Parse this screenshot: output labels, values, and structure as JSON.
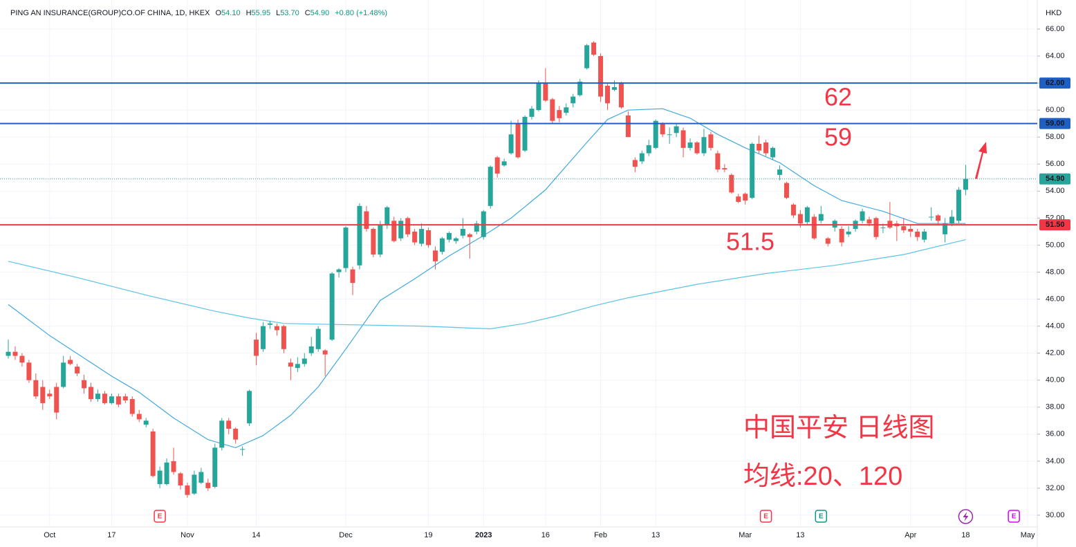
{
  "chart_data": {
    "type": "candlestick",
    "header": {
      "symbol": "PING AN INSURANCE(GROUP)CO.OF CHINA, 1D, HKEX",
      "fields": [
        {
          "key": "O",
          "value": "54.10"
        },
        {
          "key": "H",
          "value": "55.95"
        },
        {
          "key": "L",
          "value": "53.70"
        },
        {
          "key": "C",
          "value": "54.90"
        }
      ],
      "change": "+0.80 (+1.48%)"
    },
    "axis_unit": "HKD",
    "categories": [
      null,
      null,
      null,
      null,
      null,
      null,
      "Oct",
      null,
      null,
      null,
      null,
      null,
      null,
      null,
      null,
      "17",
      null,
      null,
      null,
      null,
      null,
      null,
      null,
      null,
      null,
      null,
      "Nov",
      null,
      null,
      null,
      null,
      null,
      null,
      null,
      null,
      null,
      "14",
      null,
      null,
      null,
      null,
      null,
      null,
      null,
      null,
      null,
      null,
      null,
      null,
      "Dec",
      null,
      null,
      null,
      null,
      null,
      null,
      null,
      null,
      null,
      null,
      null,
      "19",
      null,
      null,
      null,
      null,
      null,
      null,
      null,
      "2023",
      null,
      null,
      null,
      null,
      null,
      null,
      null,
      null,
      "16",
      null,
      null,
      null,
      null,
      null,
      null,
      null,
      "Feb",
      null,
      null,
      null,
      null,
      null,
      null,
      null,
      "13",
      null,
      null,
      null,
      null,
      null,
      null,
      null,
      null,
      null,
      null,
      null,
      null,
      "Mar",
      null,
      null,
      null,
      null,
      null,
      null,
      null,
      "13",
      null,
      null,
      null,
      null,
      null,
      null,
      null,
      null,
      null,
      null,
      null,
      null,
      null,
      null,
      null,
      "Apr",
      null,
      null,
      null,
      null,
      null,
      null,
      null,
      "18",
      null,
      null,
      null,
      null,
      null,
      null,
      null,
      null,
      "May"
    ],
    "open": [
      41.8,
      42.1,
      41.8,
      41.3,
      40.0,
      39.5,
      39.0,
      39.5,
      39.5,
      41.5,
      41.0,
      40.0,
      39.5,
      38.6,
      39.0,
      38.3,
      38.8,
      38.8,
      38.6,
      37.5,
      36.7,
      36.2,
      32.3,
      32.3,
      34.0,
      33.1,
      32.2,
      31.6,
      32.4,
      32.4,
      32.1,
      35.0,
      37.0,
      36.4,
      34.9,
      36.8,
      43.0,
      42.3,
      44.1,
      44.0,
      44.0,
      41.3,
      40.9,
      41.2,
      42.0,
      42.3,
      42.2,
      43.0,
      48.0,
      48.3,
      48.2,
      48.5,
      52.5,
      51.2,
      49.3,
      51.5,
      51.8,
      50.5,
      52.0,
      51.0,
      50.1,
      51.1,
      49.6,
      49.5,
      50.4,
      50.3,
      50.7,
      50.8,
      51.0,
      50.6,
      52.9,
      56.5,
      55.9,
      56.8,
      59.0,
      57.0,
      59.5,
      60.0,
      62.0,
      60.8,
      60.0,
      59.8,
      60.5,
      61.1,
      63.1,
      65.0,
      64.0,
      61.8,
      61.5,
      62.0,
      59.6,
      56.3,
      56.2,
      56.8,
      57.2,
      59.0,
      58.2,
      58.3,
      58.5,
      57.2,
      57.6,
      56.8,
      58.2,
      56.8,
      55.7,
      55.2,
      53.6,
      53.8,
      53.5,
      57.5,
      57.6,
      56.5,
      55.2,
      54.6,
      53.0,
      52.3,
      51.7,
      52.1,
      51.8,
      50.5,
      51.3,
      51.2,
      50.8,
      51.2,
      51.8,
      51.9,
      52.0,
      51.3,
      51.8,
      51.6,
      51.4,
      51.2,
      51.0,
      50.4,
      52.1,
      52.2,
      50.8,
      51.6,
      51.8,
      54.1,
      null,
      null,
      null,
      null,
      null,
      null,
      null,
      null,
      null
    ],
    "high": [
      43.0,
      42.5,
      42.0,
      41.5,
      40.5,
      40.0,
      39.3,
      39.8,
      41.8,
      41.8,
      41.2,
      40.4,
      39.8,
      39.3,
      39.2,
      39.0,
      39.0,
      39.0,
      38.8,
      37.8,
      37.2,
      36.4,
      33.6,
      34.2,
      35.0,
      33.2,
      32.4,
      33.3,
      33.5,
      32.7,
      35.3,
      37.2,
      37.2,
      36.5,
      35.1,
      39.3,
      43.5,
      44.3,
      44.4,
      44.2,
      44.1,
      41.6,
      41.7,
      42.0,
      43.2,
      44.0,
      42.3,
      48.0,
      48.3,
      51.4,
      48.4,
      53.1,
      52.9,
      51.3,
      51.8,
      52.9,
      52.1,
      52.0,
      52.1,
      51.2,
      51.6,
      51.3,
      49.9,
      50.6,
      51.0,
      50.6,
      52.0,
      50.9,
      51.8,
      52.6,
      55.9,
      56.6,
      56.4,
      59.2,
      59.3,
      59.6,
      60.3,
      62.2,
      63.1,
      60.9,
      60.3,
      60.5,
      61.2,
      62.3,
      64.9,
      65.1,
      64.2,
      62.0,
      62.2,
      62.1,
      59.9,
      56.5,
      57.0,
      57.8,
      59.3,
      59.1,
      58.7,
      59.0,
      58.7,
      57.9,
      57.7,
      58.6,
      58.4,
      57.0,
      56.0,
      55.3,
      53.8,
      53.9,
      57.6,
      58.1,
      57.8,
      57.3,
      55.9,
      54.7,
      53.1,
      52.6,
      52.9,
      52.3,
      52.9,
      50.6,
      51.9,
      51.4,
      51.4,
      51.9,
      52.7,
      52.1,
      52.1,
      51.6,
      53.2,
      51.8,
      52.0,
      51.5,
      51.2,
      51.2,
      52.8,
      52.3,
      52.0,
      52.6,
      54.3,
      55.95,
      null,
      null,
      null,
      null,
      null,
      null,
      null,
      null,
      null
    ],
    "low": [
      41.6,
      41.5,
      41.0,
      39.8,
      38.6,
      37.8,
      38.6,
      37.1,
      39.4,
      41.1,
      40.3,
      39.0,
      38.4,
      38.4,
      38.2,
      38.2,
      38.0,
      38.3,
      37.3,
      36.9,
      36.5,
      32.8,
      32.0,
      32.2,
      33.0,
      31.9,
      31.3,
      31.5,
      32.3,
      31.8,
      32.0,
      34.8,
      36.0,
      35.3,
      34.4,
      36.6,
      41.1,
      42.1,
      43.8,
      43.3,
      42.0,
      40.0,
      40.6,
      41.0,
      41.8,
      42.1,
      40.3,
      42.9,
      47.6,
      48.0,
      46.3,
      48.2,
      51.0,
      49.1,
      49.1,
      51.2,
      50.2,
      50.3,
      50.6,
      50.0,
      49.9,
      49.8,
      48.2,
      49.3,
      50.2,
      50.1,
      50.5,
      49.0,
      50.8,
      50.4,
      52.7,
      55.0,
      55.8,
      56.7,
      56.4,
      56.9,
      59.3,
      59.9,
      60.6,
      59.0,
      59.1,
      59.6,
      60.2,
      61.0,
      63.0,
      64.0,
      60.6,
      60.0,
      61.4,
      60.1,
      58.0,
      55.4,
      56.0,
      56.6,
      57.1,
      58.0,
      57.5,
      58.0,
      56.5,
      57.0,
      56.7,
      56.6,
      57.0,
      55.4,
      55.4,
      53.8,
      53.1,
      53.0,
      53.4,
      56.8,
      56.6,
      56.3,
      54.8,
      53.4,
      52.0,
      51.3,
      51.5,
      50.4,
      51.6,
      49.9,
      51.0,
      49.9,
      50.6,
      51.0,
      51.6,
      51.4,
      50.4,
      50.9,
      51.2,
      50.3,
      50.9,
      50.6,
      50.3,
      50.2,
      51.8,
      51.5,
      50.2,
      51.4,
      51.6,
      53.7,
      null,
      null,
      null,
      null,
      null,
      null,
      null,
      null,
      null
    ],
    "close": [
      42.1,
      41.8,
      41.3,
      40.0,
      38.8,
      38.3,
      38.8,
      37.6,
      41.3,
      41.2,
      40.5,
      39.4,
      38.6,
      39.0,
      38.3,
      38.8,
      38.2,
      38.5,
      37.5,
      37.1,
      37.0,
      32.9,
      33.3,
      33.9,
      33.2,
      32.2,
      31.5,
      33.0,
      33.2,
      32.0,
      35.0,
      37.0,
      36.4,
      35.6,
      34.9,
      39.2,
      41.8,
      44.0,
      44.2,
      43.7,
      42.3,
      41.0,
      41.2,
      41.6,
      42.5,
      43.8,
      41.9,
      47.9,
      48.2,
      51.3,
      47.2,
      52.9,
      51.2,
      49.3,
      51.5,
      52.8,
      50.3,
      51.8,
      50.8,
      50.2,
      51.2,
      50.0,
      48.8,
      50.5,
      50.9,
      50.5,
      51.2,
      50.6,
      51.6,
      52.5,
      55.8,
      55.3,
      56.2,
      58.2,
      56.5,
      59.5,
      60.1,
      62.0,
      60.7,
      59.2,
      59.4,
      60.2,
      61.0,
      62.1,
      64.8,
      64.1,
      61.0,
      60.5,
      61.7,
      60.2,
      58.0,
      55.8,
      56.8,
      57.4,
      59.2,
      58.2,
      58.2,
      58.8,
      57.2,
      57.6,
      56.8,
      58.0,
      57.2,
      55.6,
      55.6,
      53.9,
      53.2,
      53.3,
      57.5,
      57.0,
      56.8,
      57.2,
      55.6,
      53.5,
      52.2,
      51.6,
      52.8,
      50.5,
      52.3,
      50.1,
      51.8,
      50.2,
      51.0,
      51.8,
      52.5,
      51.6,
      50.6,
      51.3,
      51.3,
      51.4,
      51.1,
      51.0,
      50.6,
      51.0,
      52.1,
      51.8,
      51.6,
      52.1,
      54.1,
      54.9,
      null,
      null,
      null,
      null,
      null,
      null,
      null,
      null,
      null
    ],
    "up_color": "#26a69a",
    "down_color": "#ef5350",
    "moving_averages": [
      {
        "color": "#3fa9df",
        "x": [
          0,
          6,
          15,
          19,
          24,
          29,
          33,
          37,
          41,
          45,
          49,
          54,
          59,
          64,
          69,
          73,
          78,
          84,
          87,
          90,
          95,
          99,
          103,
          107,
          112,
          117,
          121,
          127,
          132,
          139
        ],
        "values": [
          45.6,
          43.3,
          40.3,
          39.1,
          37.2,
          35.6,
          35.0,
          35.9,
          37.4,
          39.5,
          42.3,
          45.9,
          47.5,
          49.2,
          50.7,
          52.0,
          54.1,
          57.6,
          59.3,
          60.0,
          60.1,
          59.4,
          58.2,
          57.2,
          56.1,
          54.4,
          53.3,
          52.5,
          51.6,
          51.6
        ]
      },
      {
        "color": "#5bc3e6",
        "x": [
          0,
          10,
          20,
          30,
          35,
          40,
          50,
          60,
          70,
          75,
          80,
          85,
          90,
          100,
          110,
          120,
          130,
          139
        ],
        "values": [
          48.8,
          47.6,
          46.3,
          45.1,
          44.6,
          44.2,
          44.1,
          44.0,
          43.8,
          44.2,
          44.8,
          45.5,
          46.1,
          47.1,
          47.9,
          48.5,
          49.3,
          50.4
        ]
      }
    ],
    "hlines": [
      {
        "value": 62,
        "label": "62.00",
        "note": "62",
        "color": "#1e5fc4"
      },
      {
        "value": 59,
        "label": "59.00",
        "note": "59",
        "color": "#1e5fc4"
      },
      {
        "value": 51.5,
        "label": "51.50",
        "note": "51.5",
        "color": "#f23645"
      }
    ],
    "last_price": {
      "value": 54.9,
      "label": "54.90",
      "color": "#26a69a"
    },
    "annotations": [
      "中国平安 日线图",
      "均线:20、120"
    ],
    "events": [
      {
        "label": "E",
        "index": 22,
        "color": "#f23645"
      },
      {
        "label": "E",
        "index": 110,
        "color": "#f23645"
      },
      {
        "label": "E",
        "index": 118,
        "color": "#089981"
      },
      {
        "label": "E",
        "index": 146,
        "color": "#d500f9"
      }
    ],
    "ylim": [
      29.13,
      68.15
    ],
    "yticks": [
      {
        "value": 30,
        "label": "30.00"
      },
      {
        "value": 32,
        "label": "32.00"
      },
      {
        "value": 34,
        "label": "34.00"
      },
      {
        "value": 36,
        "label": "36.00"
      },
      {
        "value": 38,
        "label": "38.00"
      },
      {
        "value": 40,
        "label": "40.00"
      },
      {
        "value": 42,
        "label": "42.00"
      },
      {
        "value": 44,
        "label": "44.00"
      },
      {
        "value": 46,
        "label": "46.00"
      },
      {
        "value": 48,
        "label": "48.00"
      },
      {
        "value": 50,
        "label": "50.00"
      },
      {
        "value": 52,
        "label": "52.00"
      },
      {
        "value": 54,
        "label": "54.00"
      },
      {
        "value": 56,
        "label": "56.00"
      },
      {
        "value": 58,
        "label": "58.00"
      },
      {
        "value": 60,
        "label": "60.00"
      },
      {
        "value": 62,
        "label": "62.00"
      },
      {
        "value": 64,
        "label": "64.00"
      },
      {
        "value": 66,
        "label": "66.00"
      }
    ],
    "grid": true
  }
}
